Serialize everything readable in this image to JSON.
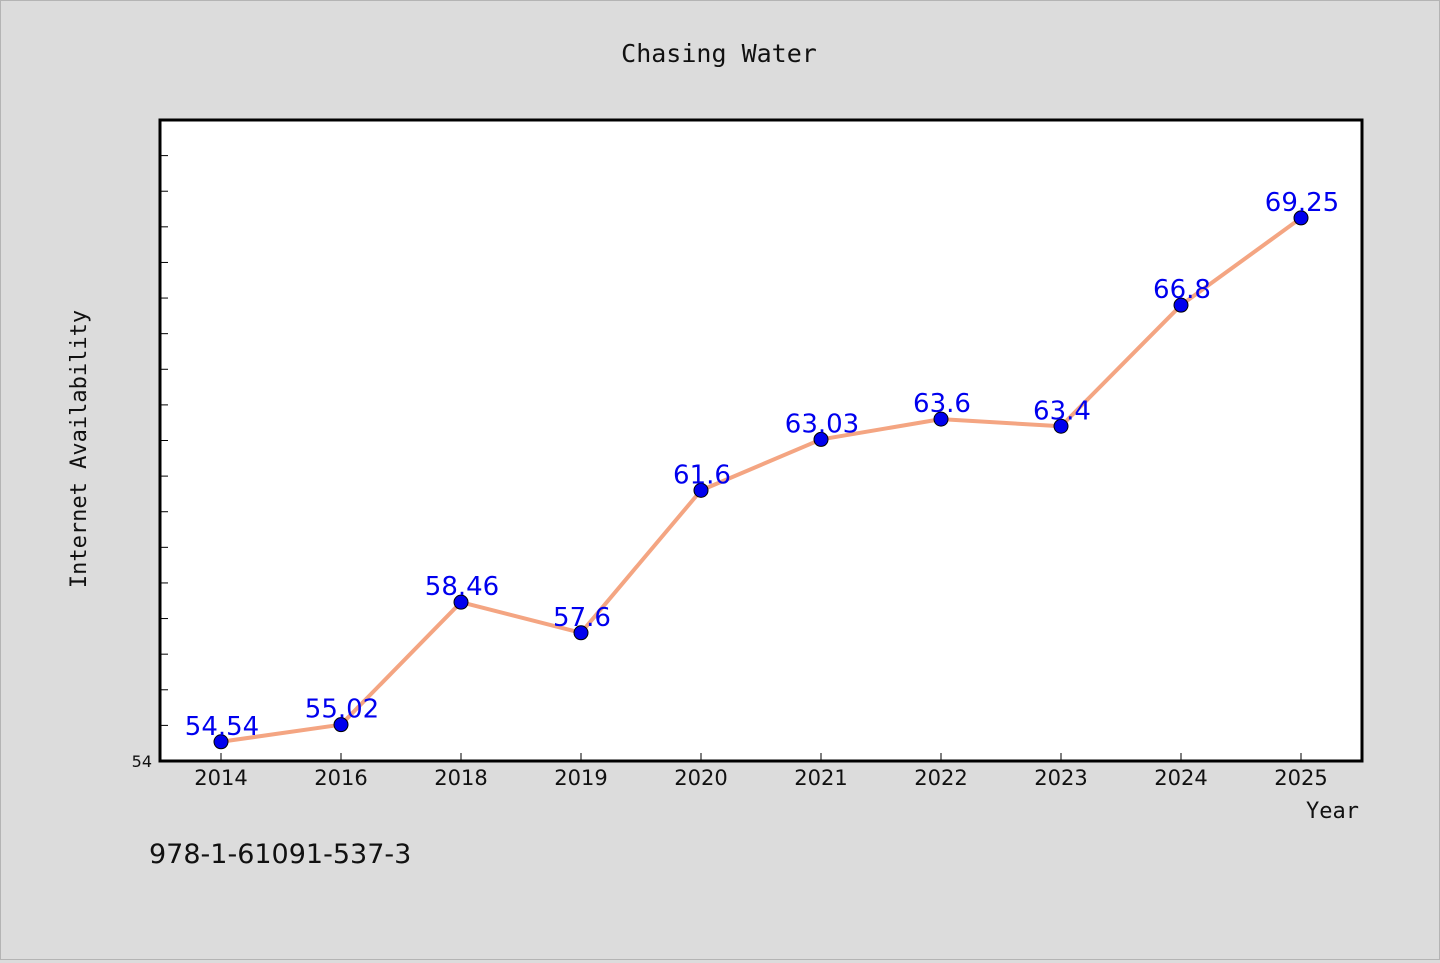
{
  "chart_data": {
    "type": "line",
    "title": "Chasing Water",
    "xlabel": "Year",
    "ylabel": "Internet Availability",
    "categories": [
      "2014",
      "2016",
      "2018",
      "2019",
      "2020",
      "2021",
      "2022",
      "2023",
      "2024",
      "2025"
    ],
    "series": [
      {
        "values": [
          54.54,
          55.02,
          58.46,
          57.6,
          61.6,
          63.03,
          63.6,
          63.4,
          66.8,
          69.25
        ],
        "data_labels": [
          "54.54",
          "55.02",
          "58.46",
          "57.6",
          "61.6",
          "63.03",
          "63.6",
          "63.4",
          "66.8",
          "69.25"
        ],
        "line_color": "#f4a582",
        "marker_color": "#0000ee",
        "label_color": "#0000ee"
      }
    ],
    "ylim": [
      54,
      72
    ],
    "y_tick_labels": [
      "54"
    ],
    "grid": false,
    "legend": "none"
  },
  "footer": {
    "isbn": "978-1-61091-537-3"
  }
}
